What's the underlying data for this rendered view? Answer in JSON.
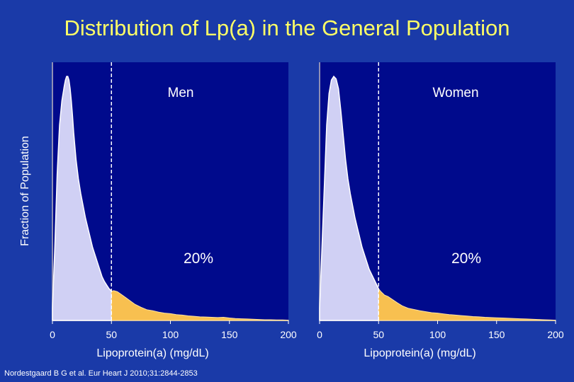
{
  "title": "Distribution of Lp(a) in the General Population",
  "ylabel": "Fraction of Population",
  "citation": "Nordestgaard B G et al. Eur Heart J 2010;31:2844-2853",
  "colors": {
    "background": "#1a3aa8",
    "panel": "#000a8c",
    "below_threshold": "#d0d0f4",
    "above_threshold": "#f8c050",
    "title": "#ffff66"
  },
  "chart_data": [
    {
      "type": "area",
      "panel_label": "Men",
      "xlabel": "Lipoprotein(a) (mg/dL)",
      "xlim": [
        0,
        200
      ],
      "x_ticks": [
        0,
        50,
        100,
        150,
        200
      ],
      "threshold": 50,
      "annotation": "20%",
      "series": [
        {
          "x": [
            0,
            2,
            4,
            6,
            8,
            10,
            11,
            12,
            13,
            14,
            15,
            16,
            17,
            18,
            20,
            22,
            24,
            26,
            28,
            30,
            32,
            34,
            36,
            38,
            40,
            42,
            44,
            46,
            48,
            50,
            52,
            55,
            58,
            62,
            66,
            70,
            75,
            80,
            85,
            90,
            95,
            100,
            105,
            110,
            115,
            120,
            125,
            130,
            135,
            140,
            145,
            150,
            155,
            160,
            165,
            170,
            175,
            180,
            185,
            190,
            195,
            200
          ],
          "y": [
            0.05,
            0.3,
            0.6,
            0.8,
            0.9,
            0.96,
            0.985,
            1.0,
            1.0,
            0.985,
            0.95,
            0.9,
            0.84,
            0.77,
            0.66,
            0.58,
            0.52,
            0.47,
            0.42,
            0.38,
            0.34,
            0.3,
            0.27,
            0.24,
            0.21,
            0.18,
            0.16,
            0.145,
            0.13,
            0.12,
            0.122,
            0.118,
            0.108,
            0.094,
            0.08,
            0.066,
            0.054,
            0.044,
            0.04,
            0.034,
            0.03,
            0.028,
            0.024,
            0.022,
            0.019,
            0.017,
            0.015,
            0.014,
            0.013,
            0.012,
            0.013,
            0.01,
            0.008,
            0.007,
            0.006,
            0.005,
            0.004,
            0.003,
            0.003,
            0.002,
            0.002,
            0.001
          ]
        }
      ]
    },
    {
      "type": "area",
      "panel_label": "Women",
      "xlabel": "Lipoprotein(a) (mg/dL)",
      "xlim": [
        0,
        200
      ],
      "x_ticks": [
        0,
        50,
        100,
        150,
        200
      ],
      "threshold": 50,
      "annotation": "20%",
      "series": [
        {
          "x": [
            0,
            2,
            4,
            6,
            8,
            10,
            12,
            14,
            16,
            18,
            20,
            22,
            24,
            26,
            28,
            30,
            32,
            34,
            36,
            38,
            40,
            42,
            44,
            46,
            48,
            50,
            52,
            55,
            58,
            62,
            66,
            70,
            75,
            80,
            85,
            90,
            95,
            100,
            105,
            110,
            115,
            120,
            125,
            130,
            135,
            140,
            145,
            150,
            155,
            160,
            165,
            170,
            175,
            180,
            185,
            190,
            195,
            200
          ],
          "y": [
            0.05,
            0.3,
            0.55,
            0.8,
            0.93,
            0.985,
            1.0,
            0.99,
            0.95,
            0.86,
            0.76,
            0.66,
            0.58,
            0.52,
            0.47,
            0.42,
            0.38,
            0.34,
            0.3,
            0.27,
            0.24,
            0.21,
            0.19,
            0.17,
            0.15,
            0.13,
            0.118,
            0.104,
            0.098,
            0.085,
            0.072,
            0.06,
            0.05,
            0.045,
            0.04,
            0.036,
            0.032,
            0.03,
            0.027,
            0.024,
            0.022,
            0.02,
            0.018,
            0.016,
            0.015,
            0.013,
            0.012,
            0.011,
            0.01,
            0.009,
            0.008,
            0.007,
            0.006,
            0.005,
            0.004,
            0.003,
            0.002,
            0.001
          ]
        }
      ]
    }
  ]
}
